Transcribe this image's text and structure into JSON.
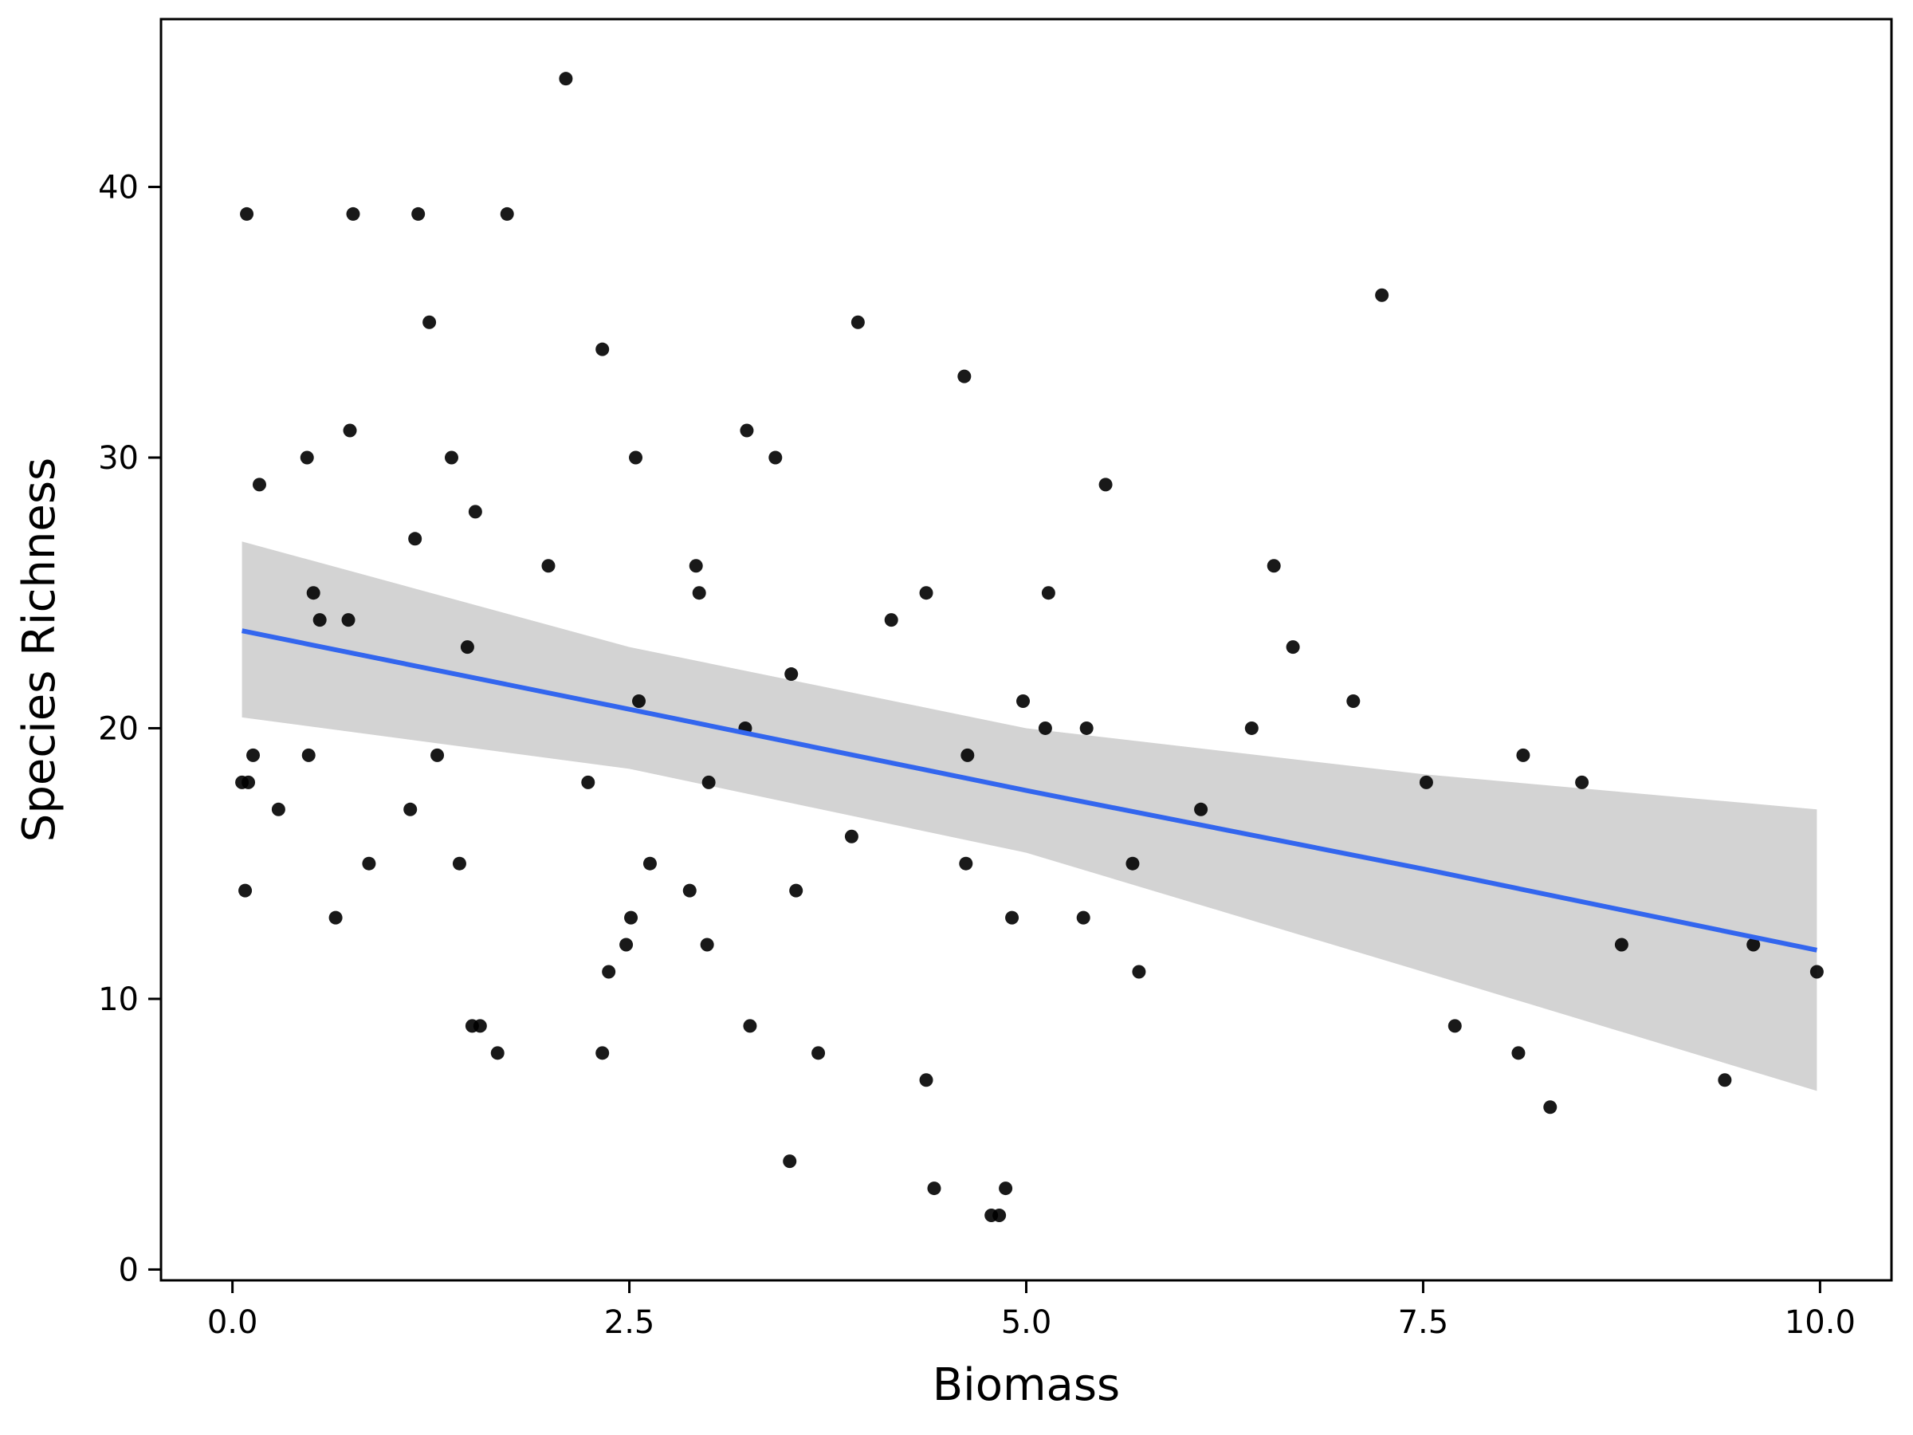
{
  "chart_data": {
    "type": "scatter",
    "title": "",
    "xlabel": "Biomass",
    "ylabel": "Species Richness",
    "xlim": [
      -0.45,
      10.45
    ],
    "ylim": [
      -0.4,
      46.2
    ],
    "xticks": [
      0.0,
      2.5,
      5.0,
      7.5,
      10.0
    ],
    "xtick_labels": [
      "0.0",
      "2.5",
      "5.0",
      "7.5",
      "10.0"
    ],
    "yticks": [
      0,
      10,
      20,
      30,
      40
    ],
    "ytick_labels": [
      "0",
      "10",
      "20",
      "30",
      "40"
    ],
    "grid": false,
    "legend": "none",
    "colors": {
      "points": "#000000",
      "fit_line": "#3366ee",
      "confidence_band": "#d3d3d3",
      "frame": "#000000",
      "background": "#ffffff"
    },
    "points": [
      {
        "x": 0.06,
        "y": 18
      },
      {
        "x": 0.08,
        "y": 14
      },
      {
        "x": 0.09,
        "y": 39
      },
      {
        "x": 0.1,
        "y": 18
      },
      {
        "x": 0.13,
        "y": 19
      },
      {
        "x": 0.17,
        "y": 29
      },
      {
        "x": 0.29,
        "y": 17
      },
      {
        "x": 0.47,
        "y": 30
      },
      {
        "x": 0.48,
        "y": 19
      },
      {
        "x": 0.51,
        "y": 25
      },
      {
        "x": 0.55,
        "y": 24
      },
      {
        "x": 0.65,
        "y": 13
      },
      {
        "x": 0.73,
        "y": 24
      },
      {
        "x": 0.74,
        "y": 31
      },
      {
        "x": 0.76,
        "y": 39
      },
      {
        "x": 0.86,
        "y": 15
      },
      {
        "x": 1.12,
        "y": 17
      },
      {
        "x": 1.15,
        "y": 27
      },
      {
        "x": 1.17,
        "y": 39
      },
      {
        "x": 1.24,
        "y": 35
      },
      {
        "x": 1.29,
        "y": 19
      },
      {
        "x": 1.38,
        "y": 30
      },
      {
        "x": 1.43,
        "y": 15
      },
      {
        "x": 1.48,
        "y": 23
      },
      {
        "x": 1.51,
        "y": 9
      },
      {
        "x": 1.53,
        "y": 28
      },
      {
        "x": 1.56,
        "y": 9
      },
      {
        "x": 1.67,
        "y": 8
      },
      {
        "x": 1.73,
        "y": 39
      },
      {
        "x": 1.99,
        "y": 26
      },
      {
        "x": 2.1,
        "y": 44
      },
      {
        "x": 2.24,
        "y": 18
      },
      {
        "x": 2.33,
        "y": 8
      },
      {
        "x": 2.33,
        "y": 34
      },
      {
        "x": 2.37,
        "y": 11
      },
      {
        "x": 2.48,
        "y": 12
      },
      {
        "x": 2.51,
        "y": 13
      },
      {
        "x": 2.54,
        "y": 30
      },
      {
        "x": 2.56,
        "y": 21
      },
      {
        "x": 2.63,
        "y": 15
      },
      {
        "x": 2.88,
        "y": 14
      },
      {
        "x": 2.92,
        "y": 26
      },
      {
        "x": 2.94,
        "y": 25
      },
      {
        "x": 2.99,
        "y": 12
      },
      {
        "x": 3.0,
        "y": 18
      },
      {
        "x": 3.23,
        "y": 20
      },
      {
        "x": 3.24,
        "y": 31
      },
      {
        "x": 3.26,
        "y": 9
      },
      {
        "x": 3.42,
        "y": 30
      },
      {
        "x": 3.51,
        "y": 4
      },
      {
        "x": 3.52,
        "y": 22
      },
      {
        "x": 3.55,
        "y": 14
      },
      {
        "x": 3.69,
        "y": 8
      },
      {
        "x": 3.9,
        "y": 16
      },
      {
        "x": 3.94,
        "y": 35
      },
      {
        "x": 4.15,
        "y": 24
      },
      {
        "x": 4.37,
        "y": 7
      },
      {
        "x": 4.37,
        "y": 25
      },
      {
        "x": 4.42,
        "y": 3
      },
      {
        "x": 4.61,
        "y": 33
      },
      {
        "x": 4.62,
        "y": 15
      },
      {
        "x": 4.63,
        "y": 19
      },
      {
        "x": 4.78,
        "y": 2
      },
      {
        "x": 4.83,
        "y": 2
      },
      {
        "x": 4.87,
        "y": 3
      },
      {
        "x": 4.91,
        "y": 13
      },
      {
        "x": 4.98,
        "y": 21
      },
      {
        "x": 5.12,
        "y": 20
      },
      {
        "x": 5.14,
        "y": 25
      },
      {
        "x": 5.36,
        "y": 13
      },
      {
        "x": 5.38,
        "y": 20
      },
      {
        "x": 5.5,
        "y": 29
      },
      {
        "x": 5.67,
        "y": 15
      },
      {
        "x": 5.71,
        "y": 11
      },
      {
        "x": 6.1,
        "y": 17
      },
      {
        "x": 6.42,
        "y": 20
      },
      {
        "x": 6.56,
        "y": 26
      },
      {
        "x": 6.68,
        "y": 23
      },
      {
        "x": 7.06,
        "y": 21
      },
      {
        "x": 7.24,
        "y": 36
      },
      {
        "x": 7.52,
        "y": 18
      },
      {
        "x": 7.7,
        "y": 9
      },
      {
        "x": 8.1,
        "y": 8
      },
      {
        "x": 8.13,
        "y": 19
      },
      {
        "x": 8.3,
        "y": 6
      },
      {
        "x": 8.5,
        "y": 18
      },
      {
        "x": 8.75,
        "y": 12
      },
      {
        "x": 9.4,
        "y": 7
      },
      {
        "x": 9.58,
        "y": 12
      },
      {
        "x": 9.98,
        "y": 11
      }
    ],
    "fit": {
      "x": [
        0.06,
        2.5,
        5.0,
        7.5,
        9.98
      ],
      "y": [
        23.6,
        20.7,
        17.7,
        14.8,
        11.8
      ],
      "lower": [
        20.4,
        18.5,
        15.4,
        11.0,
        6.6
      ],
      "upper": [
        26.9,
        23.0,
        20.0,
        18.3,
        17.0
      ]
    }
  }
}
